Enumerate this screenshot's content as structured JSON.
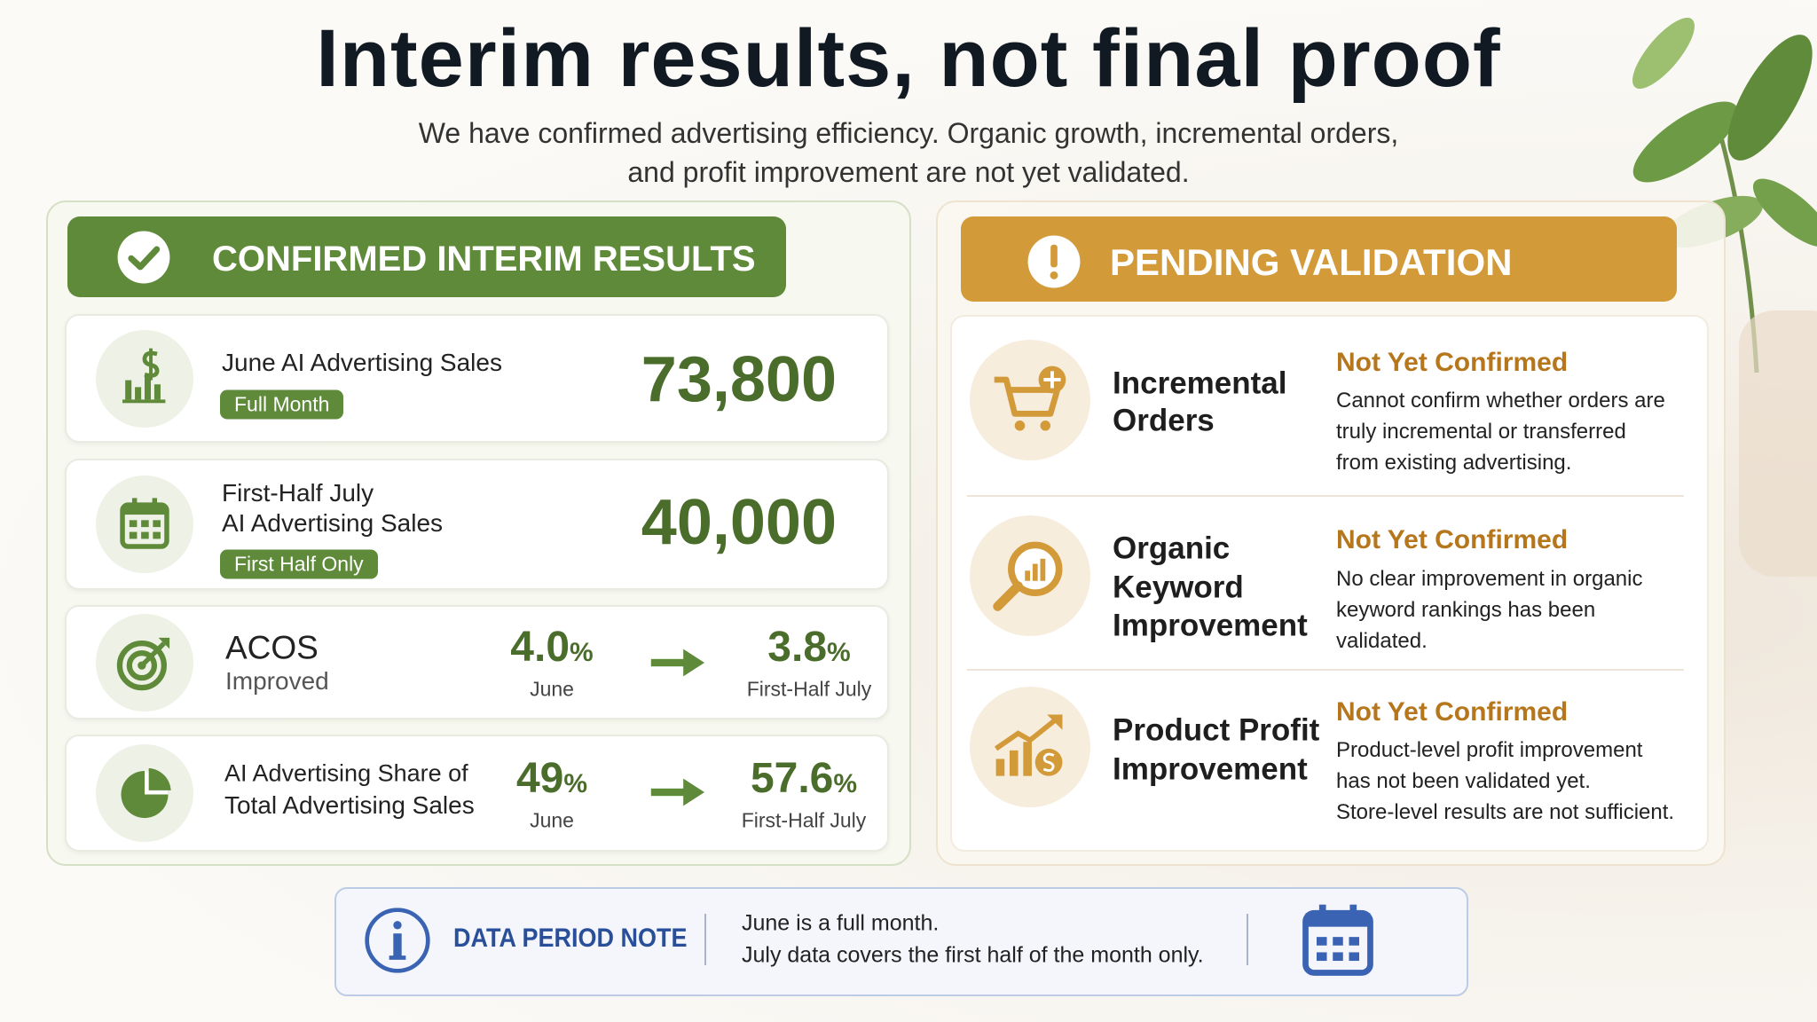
{
  "header": {
    "title": "Interim results, not final proof",
    "subtitle": [
      "We have confirmed advertising efficiency. Organic growth, incremental orders,",
      "and profit improvement are not yet validated."
    ]
  },
  "confirmed": {
    "heading": "CONFIRMED INTERIM RESULTS",
    "sales": [
      {
        "label": [
          "June AI Advertising Sales"
        ],
        "tag": "Full Month",
        "value": "73,800"
      },
      {
        "label": [
          "First-Half July",
          "AI Advertising Sales"
        ],
        "tag": "First Half Only",
        "value": "40,000"
      }
    ],
    "comparisons": [
      {
        "label": [
          "ACOS",
          "Improved"
        ],
        "before": {
          "number": "4.0",
          "unit": "%",
          "period": "June"
        },
        "after": {
          "number": "3.8",
          "unit": "%",
          "period": "First-Half July"
        }
      },
      {
        "label": [
          "AI Advertising Share of",
          "Total Advertising Sales"
        ],
        "before": {
          "number": "49",
          "unit": "%",
          "period": "June"
        },
        "after": {
          "number": "57.6",
          "unit": "%",
          "period": "First-Half July"
        }
      }
    ]
  },
  "pending": {
    "heading": "PENDING VALIDATION",
    "items": [
      {
        "label": [
          "Incremental",
          "Orders"
        ],
        "status": "Not Yet Confirmed",
        "description": [
          "Cannot confirm whether orders are",
          "truly incremental or transferred",
          "from existing advertising."
        ]
      },
      {
        "label": [
          "Organic",
          "Keyword",
          "Improvement"
        ],
        "status": "Not Yet Confirmed",
        "description": [
          "No clear improvement in organic",
          "keyword rankings has been",
          "validated."
        ]
      },
      {
        "label": [
          "Product Profit",
          "Improvement"
        ],
        "status": "Not Yet Confirmed",
        "description": [
          "Product-level profit improvement",
          "has not been validated yet.",
          "Store-level results are not sufficient."
        ]
      }
    ]
  },
  "note": {
    "heading": "DATA PERIOD NOTE",
    "lines": [
      "June is a full month.",
      "July data covers the first half of the month only."
    ]
  }
}
